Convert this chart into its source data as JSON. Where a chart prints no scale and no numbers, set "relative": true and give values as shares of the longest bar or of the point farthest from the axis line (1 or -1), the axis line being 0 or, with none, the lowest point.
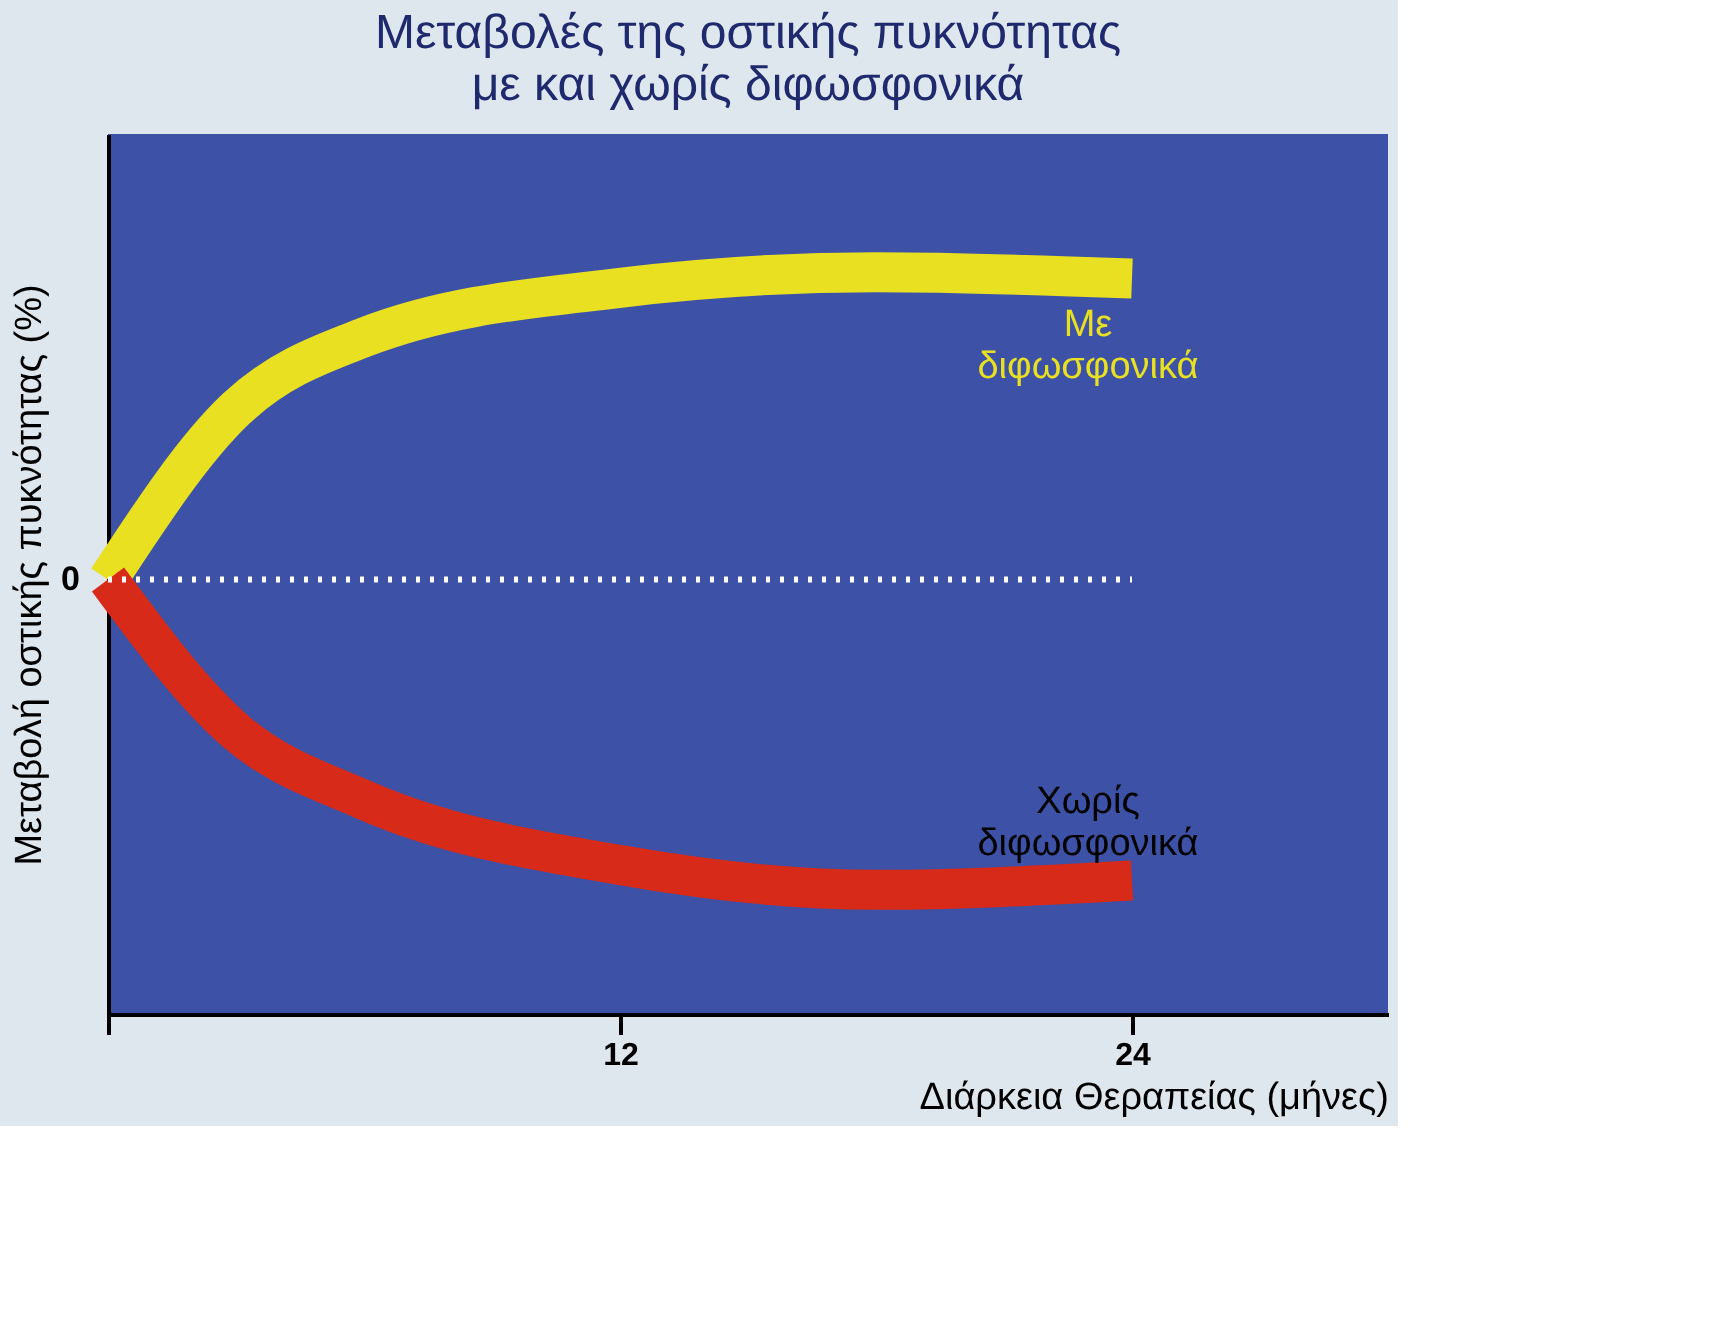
{
  "chart_data": {
    "type": "line",
    "title": "Μεταβολές της οστικής πυκνότητας\nμε και χωρίς διφωσφονικά",
    "xlabel": "Διάρκεια Θεραπείας (μήνες)",
    "ylabel": "Μεταβολή οστικής πυκνότητας (%)",
    "relative": true,
    "x": [
      0,
      3,
      6,
      12,
      18,
      24
    ],
    "xlim": [
      0,
      30
    ],
    "xticks": [
      {
        "value": 0,
        "label": null
      },
      12,
      24
    ],
    "series": [
      {
        "name": "Με διφωσφονικά",
        "color": "#e8e020",
        "values": [
          0,
          0.55,
          0.78,
          0.94,
          0.99,
          0.97
        ]
      },
      {
        "name": "Χωρίς διφωσφονικά",
        "color": "#d82a18",
        "values": [
          0,
          -0.49,
          -0.71,
          -0.92,
          -1,
          -0.97
        ]
      }
    ],
    "ref_lines": [
      {
        "axis": "y",
        "value": 0,
        "label": "0",
        "color": "#ffffff",
        "line_style": "dotted"
      }
    ],
    "grid": false,
    "marker": "none"
  }
}
